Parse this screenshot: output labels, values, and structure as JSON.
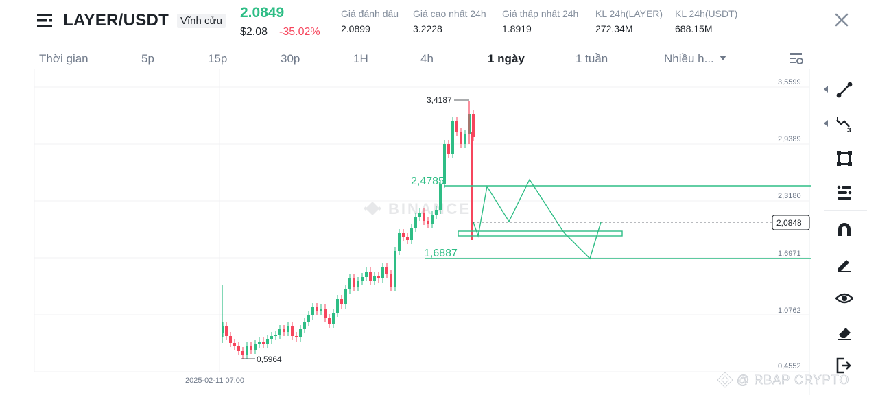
{
  "header": {
    "symbol": "LAYER/USDT",
    "contract_type": "Vĩnh cửu",
    "last_price": "2.0849",
    "usd_price": "$2.08",
    "change_pct": "-35.02%",
    "stats": [
      {
        "label": "Giá đánh dấu",
        "value": "2.0899"
      },
      {
        "label": "Giá cao nhất 24h",
        "value": "3.2228"
      },
      {
        "label": "Giá thấp nhất 24h",
        "value": "1.8919"
      },
      {
        "label": "KL 24h(LAYER)",
        "value": "272.34M"
      },
      {
        "label": "KL 24h(USDT)",
        "value": "688.15M"
      }
    ],
    "icons": {
      "menu": "menu-icon",
      "close": "close-icon"
    }
  },
  "intervals": {
    "items": [
      "Thời gian",
      "5p",
      "15p",
      "30p",
      "1H",
      "4h",
      "1 ngày",
      "1 tuần",
      "Nhiều h..."
    ],
    "active": "1 ngày",
    "settings_icon": "chart-settings-icon"
  },
  "toolbar": {
    "tools": [
      "trend-line-icon",
      "fib-tool-icon",
      "rectangle-icon",
      "text-tool-icon",
      "magnet-icon",
      "pencil-icon",
      "eye-icon",
      "eraser-icon",
      "export-icon"
    ]
  },
  "chart_data": {
    "type": "candlestick",
    "y_ticks": [
      "3,5599",
      "2,9389",
      "2,3180",
      "1,6971",
      "1,0762",
      "0,4552"
    ],
    "x_tick": "2025-02-11 07:00",
    "current_price_label": "2,0848",
    "high_marker": "3,4187",
    "low_marker": "0,5964",
    "levels": [
      {
        "label": "2,4785",
        "value": 2.4785
      },
      {
        "label": "1,6887",
        "value": 1.6887
      }
    ],
    "up_color": "#2ebd85",
    "down_color": "#f6465d",
    "watermark": "BINANCE",
    "credit": "@ RBAP CRYPTO"
  }
}
